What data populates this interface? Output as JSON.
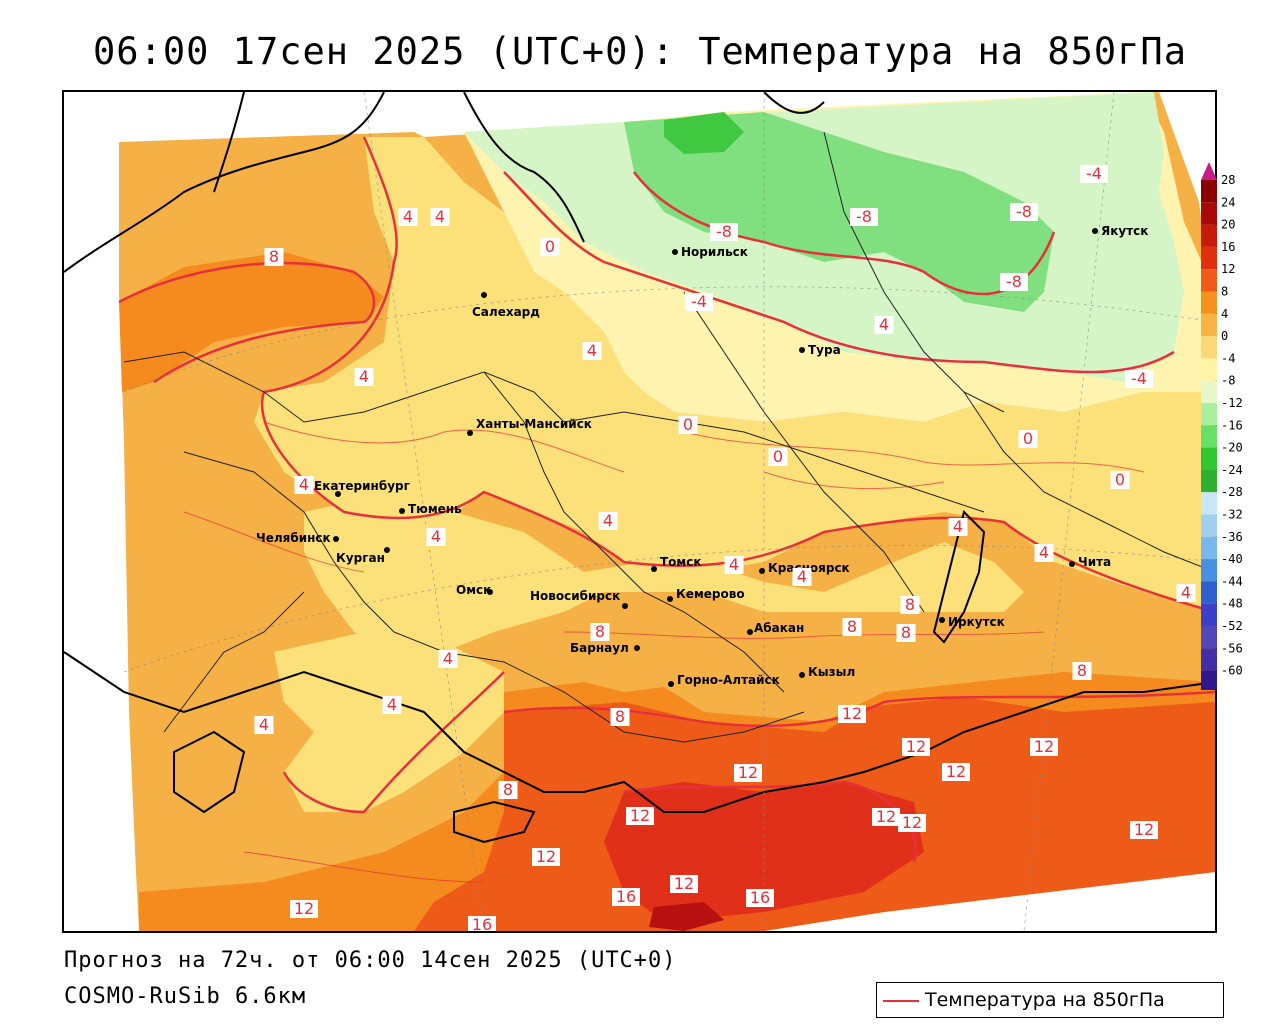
{
  "title": "06:00 17сен 2025 (UTC+0): Температура на 850гПа",
  "forecast": "Прогноз на 72ч. от 06:00 14сен 2025 (UTC+0)",
  "model": "COSMO-RuSib 6.6км",
  "legend": {
    "label": "Температура на 850гПа",
    "color": "#e8303a"
  },
  "colorbar": {
    "ticks": [
      "28",
      "24",
      "20",
      "16",
      "12",
      "8",
      "4",
      "0",
      "-4",
      "-8",
      "-12",
      "-16",
      "-20",
      "-24",
      "-28",
      "-32",
      "-36",
      "-40",
      "-44",
      "-48",
      "-52",
      "-56",
      "-60"
    ],
    "colors": [
      "#8b0000",
      "#a80a0a",
      "#c81a0a",
      "#e03010",
      "#f05a1a",
      "#f5901e",
      "#f8b446",
      "#fbd878",
      "#fff3a8",
      "#e6f8c8",
      "#a8f0a0",
      "#68e068",
      "#30c830",
      "#30b030",
      "#c8e8f8",
      "#a0d0f0",
      "#78b8ec",
      "#4a90e0",
      "#3060d0",
      "#3a40c8",
      "#5048b8",
      "#4030a8",
      "#30188c"
    ]
  },
  "cities": [
    {
      "name": "Норильск"
    },
    {
      "name": "Якутск"
    },
    {
      "name": "Салехард"
    },
    {
      "name": "Тура"
    },
    {
      "name": "Ханты-Мансийск"
    },
    {
      "name": "Екатеринбург"
    },
    {
      "name": "Тюмень"
    },
    {
      "name": "Челябинск"
    },
    {
      "name": "Курган"
    },
    {
      "name": "Омск"
    },
    {
      "name": "Новосибирск"
    },
    {
      "name": "Томск"
    },
    {
      "name": "Кемерово"
    },
    {
      "name": "Красноярск"
    },
    {
      "name": "Чита"
    },
    {
      "name": "Иркутск"
    },
    {
      "name": "Абакан"
    },
    {
      "name": "Барнаул"
    },
    {
      "name": "Горно-Алтайск"
    },
    {
      "name": "Кызыл"
    }
  ],
  "isolines": [
    "-4",
    "-8",
    "-8",
    "-8",
    "-8",
    "-4",
    "-4",
    "4",
    "4",
    "4",
    "4",
    "8",
    "0",
    "0",
    "0",
    "0",
    "0",
    "4",
    "4",
    "4",
    "4",
    "4",
    "4",
    "4",
    "4",
    "4",
    "4",
    "4",
    "4",
    "8",
    "8",
    "8",
    "8",
    "8",
    "8",
    "8",
    "12",
    "12",
    "12",
    "12",
    "12",
    "12",
    "12",
    "12",
    "12",
    "12",
    "12",
    "16",
    "12",
    "16",
    "16"
  ]
}
